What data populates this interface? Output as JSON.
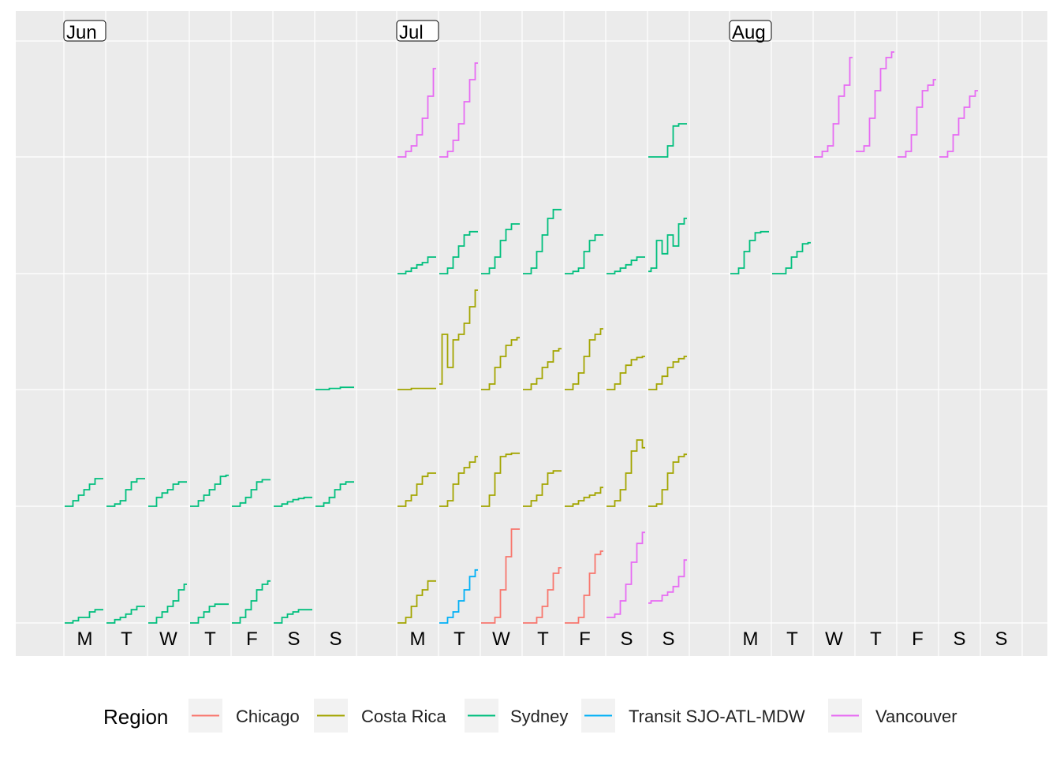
{
  "chart_data": {
    "type": "line",
    "description_free": true,
    "months": [
      "Jun",
      "Jul",
      "Aug"
    ],
    "weekdays": [
      "M",
      "T",
      "W",
      "T",
      "F",
      "S",
      "S"
    ],
    "rows": 5,
    "legend": {
      "title": "Region",
      "position": "bottom",
      "entries": [
        {
          "name": "Chicago",
          "color": "#F8766D"
        },
        {
          "name": "Costa Rica",
          "color": "#A3A500"
        },
        {
          "name": "Sydney",
          "color": "#00BF7D"
        },
        {
          "name": "Transit SJO-ATL-MDW",
          "color": "#00B0F6"
        },
        {
          "name": "Vancouver",
          "color": "#E76BF3"
        }
      ]
    },
    "grid": true,
    "series": [
      {
        "month": 0,
        "row": 4,
        "day": 0,
        "region": "Sydney",
        "values": [
          0,
          0,
          0.02,
          0.05,
          0.05,
          0.1,
          0.12,
          0.12
        ]
      },
      {
        "month": 0,
        "row": 4,
        "day": 1,
        "region": "Sydney",
        "values": [
          0,
          0,
          0.03,
          0.05,
          0.08,
          0.12,
          0.15,
          0.15
        ]
      },
      {
        "month": 0,
        "row": 4,
        "day": 2,
        "region": "Sydney",
        "values": [
          0,
          0,
          0.05,
          0.1,
          0.15,
          0.2,
          0.3,
          0.35
        ]
      },
      {
        "month": 0,
        "row": 4,
        "day": 3,
        "region": "Sydney",
        "values": [
          0,
          0,
          0.05,
          0.1,
          0.15,
          0.17,
          0.17,
          0.17
        ]
      },
      {
        "month": 0,
        "row": 4,
        "day": 4,
        "region": "Sydney",
        "values": [
          0,
          0,
          0.05,
          0.12,
          0.2,
          0.3,
          0.35,
          0.38
        ]
      },
      {
        "month": 0,
        "row": 4,
        "day": 5,
        "region": "Sydney",
        "values": [
          0,
          0,
          0.05,
          0.08,
          0.1,
          0.12,
          0.12,
          0.12
        ]
      },
      {
        "month": 0,
        "row": 3,
        "day": 0,
        "region": "Sydney",
        "values": [
          0,
          0,
          0.05,
          0.1,
          0.15,
          0.2,
          0.25,
          0.25
        ]
      },
      {
        "month": 0,
        "row": 3,
        "day": 1,
        "region": "Sydney",
        "values": [
          0,
          0,
          0.02,
          0.05,
          0.15,
          0.22,
          0.25,
          0.25
        ]
      },
      {
        "month": 0,
        "row": 3,
        "day": 2,
        "region": "Sydney",
        "values": [
          0,
          0,
          0.08,
          0.12,
          0.15,
          0.2,
          0.22,
          0.22
        ]
      },
      {
        "month": 0,
        "row": 3,
        "day": 3,
        "region": "Sydney",
        "values": [
          0,
          0,
          0.05,
          0.1,
          0.15,
          0.2,
          0.27,
          0.28
        ]
      },
      {
        "month": 0,
        "row": 3,
        "day": 4,
        "region": "Sydney",
        "values": [
          0,
          0,
          0.03,
          0.08,
          0.15,
          0.22,
          0.24,
          0.24
        ]
      },
      {
        "month": 0,
        "row": 3,
        "day": 5,
        "region": "Sydney",
        "values": [
          0,
          0,
          0.02,
          0.04,
          0.06,
          0.07,
          0.08,
          0.08
        ]
      },
      {
        "month": 0,
        "row": 3,
        "day": 6,
        "region": "Sydney",
        "values": [
          0,
          0,
          0.03,
          0.08,
          0.15,
          0.2,
          0.22,
          0.22
        ]
      },
      {
        "month": 0,
        "row": 2,
        "day": 6,
        "region": "Sydney",
        "values": [
          0,
          0,
          0,
          0.01,
          0.01,
          0.02,
          0.02,
          0.02
        ]
      },
      {
        "month": 1,
        "row": 0,
        "day": 0,
        "region": "Vancouver",
        "values": [
          0,
          0,
          0.05,
          0.1,
          0.2,
          0.35,
          0.55,
          0.8
        ]
      },
      {
        "month": 1,
        "row": 0,
        "day": 1,
        "region": "Vancouver",
        "values": [
          0,
          0,
          0.05,
          0.15,
          0.3,
          0.5,
          0.7,
          0.85
        ]
      },
      {
        "month": 1,
        "row": 0,
        "day": 6,
        "region": "Sydney",
        "values": [
          0,
          0,
          0,
          0,
          0.1,
          0.28,
          0.3,
          0.3
        ]
      },
      {
        "month": 1,
        "row": 1,
        "day": 0,
        "region": "Sydney",
        "values": [
          0,
          0,
          0.02,
          0.05,
          0.08,
          0.1,
          0.15,
          0.15
        ]
      },
      {
        "month": 1,
        "row": 1,
        "day": 1,
        "region": "Sydney",
        "values": [
          0,
          0,
          0.05,
          0.15,
          0.25,
          0.35,
          0.38,
          0.38
        ]
      },
      {
        "month": 1,
        "row": 1,
        "day": 2,
        "region": "Sydney",
        "values": [
          0,
          0,
          0.05,
          0.15,
          0.3,
          0.4,
          0.45,
          0.45
        ]
      },
      {
        "month": 1,
        "row": 1,
        "day": 3,
        "region": "Sydney",
        "values": [
          0,
          0,
          0.05,
          0.2,
          0.35,
          0.5,
          0.58,
          0.58
        ]
      },
      {
        "month": 1,
        "row": 1,
        "day": 4,
        "region": "Sydney",
        "values": [
          0,
          0,
          0.02,
          0.05,
          0.2,
          0.3,
          0.35,
          0.35
        ]
      },
      {
        "month": 1,
        "row": 1,
        "day": 5,
        "region": "Sydney",
        "values": [
          0,
          0,
          0.02,
          0.05,
          0.08,
          0.12,
          0.15,
          0.15
        ]
      },
      {
        "month": 1,
        "row": 1,
        "day": 6,
        "region": "Sydney",
        "values": [
          0.02,
          0.05,
          0.3,
          0.18,
          0.35,
          0.25,
          0.45,
          0.5
        ]
      },
      {
        "month": 1,
        "row": 2,
        "day": 0,
        "region": "Costa Rica",
        "values": [
          0,
          0,
          0,
          0.01,
          0.01,
          0.01,
          0.01,
          0.01
        ]
      },
      {
        "month": 1,
        "row": 2,
        "day": 1,
        "region": "Costa Rica",
        "values": [
          0.05,
          0.5,
          0.2,
          0.45,
          0.5,
          0.6,
          0.75,
          0.9
        ]
      },
      {
        "month": 1,
        "row": 2,
        "day": 2,
        "region": "Costa Rica",
        "values": [
          0,
          0,
          0.05,
          0.2,
          0.3,
          0.4,
          0.45,
          0.47
        ]
      },
      {
        "month": 1,
        "row": 2,
        "day": 3,
        "region": "Costa Rica",
        "values": [
          0,
          0,
          0.05,
          0.1,
          0.2,
          0.25,
          0.35,
          0.37
        ]
      },
      {
        "month": 1,
        "row": 2,
        "day": 4,
        "region": "Costa Rica",
        "values": [
          0,
          0,
          0.05,
          0.15,
          0.3,
          0.45,
          0.5,
          0.55
        ]
      },
      {
        "month": 1,
        "row": 2,
        "day": 5,
        "region": "Costa Rica",
        "values": [
          0,
          0,
          0.05,
          0.15,
          0.22,
          0.27,
          0.29,
          0.3
        ]
      },
      {
        "month": 1,
        "row": 2,
        "day": 6,
        "region": "Costa Rica",
        "values": [
          0,
          0,
          0.05,
          0.12,
          0.2,
          0.25,
          0.28,
          0.3
        ]
      },
      {
        "month": 1,
        "row": 3,
        "day": 0,
        "region": "Costa Rica",
        "values": [
          0,
          0,
          0.05,
          0.1,
          0.2,
          0.27,
          0.3,
          0.3
        ]
      },
      {
        "month": 1,
        "row": 3,
        "day": 1,
        "region": "Costa Rica",
        "values": [
          0,
          0,
          0.05,
          0.2,
          0.3,
          0.35,
          0.4,
          0.45
        ]
      },
      {
        "month": 1,
        "row": 3,
        "day": 2,
        "region": "Costa Rica",
        "values": [
          0,
          0,
          0.1,
          0.3,
          0.45,
          0.47,
          0.48,
          0.48
        ]
      },
      {
        "month": 1,
        "row": 3,
        "day": 3,
        "region": "Costa Rica",
        "values": [
          0,
          0,
          0.05,
          0.1,
          0.2,
          0.3,
          0.32,
          0.32
        ]
      },
      {
        "month": 1,
        "row": 3,
        "day": 4,
        "region": "Costa Rica",
        "values": [
          0,
          0,
          0.02,
          0.05,
          0.08,
          0.1,
          0.12,
          0.17
        ]
      },
      {
        "month": 1,
        "row": 3,
        "day": 5,
        "region": "Costa Rica",
        "values": [
          0,
          0,
          0.05,
          0.15,
          0.3,
          0.5,
          0.6,
          0.53
        ]
      },
      {
        "month": 1,
        "row": 3,
        "day": 6,
        "region": "Costa Rica",
        "values": [
          0,
          0,
          0.02,
          0.15,
          0.3,
          0.4,
          0.45,
          0.47
        ]
      },
      {
        "month": 1,
        "row": 4,
        "day": 0,
        "region": "Costa Rica",
        "values": [
          0,
          0,
          0.05,
          0.15,
          0.25,
          0.3,
          0.38,
          0.38
        ]
      },
      {
        "month": 1,
        "row": 4,
        "day": 1,
        "region": "Transit SJO-ATL-MDW",
        "values": [
          0,
          0,
          0.05,
          0.1,
          0.2,
          0.3,
          0.42,
          0.48
        ]
      },
      {
        "month": 1,
        "row": 4,
        "day": 2,
        "region": "Chicago",
        "values": [
          0,
          0,
          0,
          0.05,
          0.3,
          0.6,
          0.85,
          0.85
        ]
      },
      {
        "month": 1,
        "row": 4,
        "day": 3,
        "region": "Chicago",
        "values": [
          0,
          0,
          0,
          0.05,
          0.15,
          0.3,
          0.45,
          0.5
        ]
      },
      {
        "month": 1,
        "row": 4,
        "day": 4,
        "region": "Chicago",
        "values": [
          0,
          0,
          0,
          0.05,
          0.25,
          0.45,
          0.62,
          0.65
        ]
      },
      {
        "month": 1,
        "row": 4,
        "day": 5,
        "region": "Vancouver",
        "values": [
          0.05,
          0.05,
          0.08,
          0.2,
          0.35,
          0.55,
          0.72,
          0.82
        ]
      },
      {
        "month": 1,
        "row": 4,
        "day": 6,
        "region": "Vancouver",
        "values": [
          0.18,
          0.2,
          0.2,
          0.25,
          0.28,
          0.33,
          0.42,
          0.57
        ]
      },
      {
        "month": 2,
        "row": 0,
        "day": 2,
        "region": "Vancouver",
        "values": [
          0,
          0,
          0.05,
          0.1,
          0.3,
          0.55,
          0.65,
          0.9
        ]
      },
      {
        "month": 2,
        "row": 0,
        "day": 3,
        "region": "Vancouver",
        "values": [
          0.05,
          0.05,
          0.1,
          0.35,
          0.6,
          0.8,
          0.9,
          0.95
        ]
      },
      {
        "month": 2,
        "row": 0,
        "day": 4,
        "region": "Vancouver",
        "values": [
          0,
          0,
          0.05,
          0.2,
          0.45,
          0.6,
          0.65,
          0.7
        ]
      },
      {
        "month": 2,
        "row": 0,
        "day": 5,
        "region": "Vancouver",
        "values": [
          0,
          0,
          0.05,
          0.2,
          0.35,
          0.45,
          0.55,
          0.6
        ]
      },
      {
        "month": 2,
        "row": 1,
        "day": 0,
        "region": "Sydney",
        "values": [
          0,
          0,
          0.05,
          0.2,
          0.3,
          0.37,
          0.38,
          0.38
        ]
      },
      {
        "month": 2,
        "row": 1,
        "day": 1,
        "region": "Sydney",
        "values": [
          0,
          0,
          0,
          0.05,
          0.15,
          0.2,
          0.27,
          0.28
        ]
      }
    ]
  }
}
